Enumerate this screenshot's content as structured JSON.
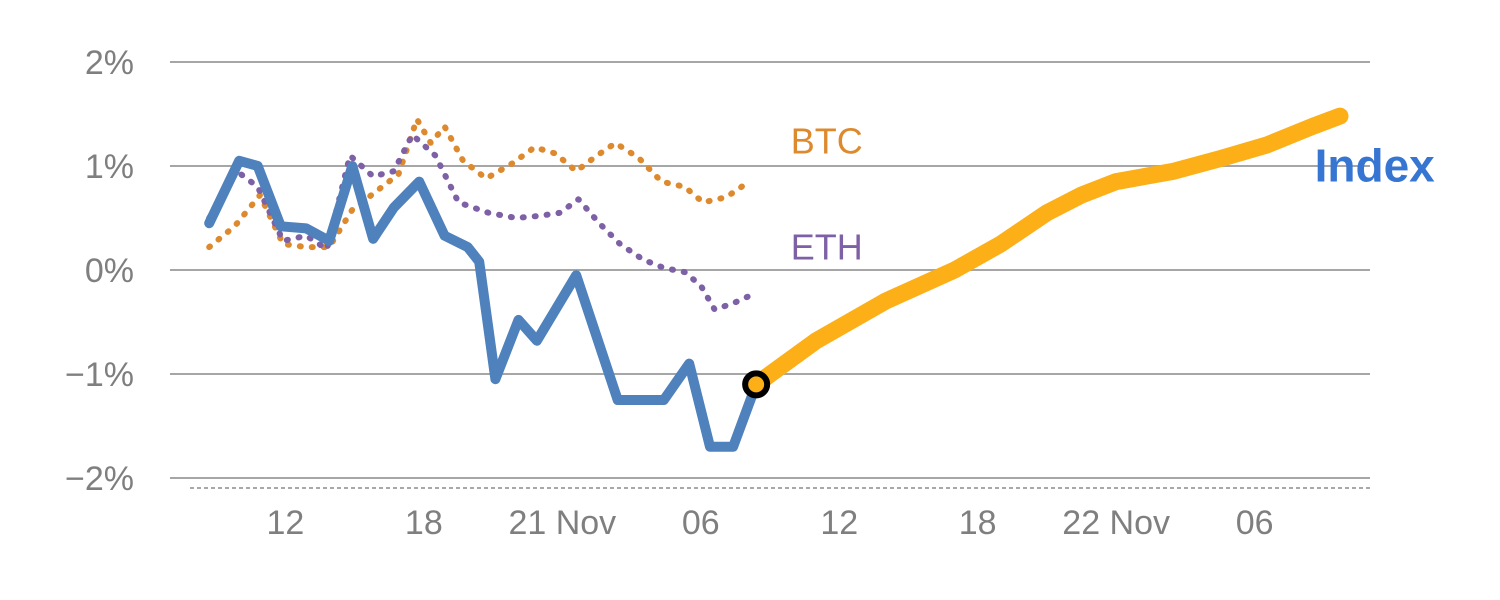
{
  "chart_data": {
    "type": "line",
    "title": "",
    "xlabel": "",
    "ylabel": "",
    "x_unit": "hours relative to first x tick (times of day across 20–23 Nov)",
    "xlim": [
      -5,
      47
    ],
    "ylim": [
      -2,
      2
    ],
    "grid": "horizontal",
    "legend_position": "inline-labels",
    "colors": {
      "index_line": "#4f81bd",
      "index_label": "#3676d2",
      "btc": "#dd8a2f",
      "eth": "#7d60a5",
      "forecast": "#fcaf17",
      "marker_ring": "#000000",
      "grid": "#a6a6a6",
      "axis_text": "#7f7f7f",
      "axis_line": "#8c8c8c"
    },
    "yticks": [
      {
        "value": 2,
        "label": "2%"
      },
      {
        "value": 1,
        "label": "1%"
      },
      {
        "value": 0,
        "label": "0%"
      },
      {
        "value": -1,
        "label": "−1%"
      },
      {
        "value": -2,
        "label": "−2%"
      }
    ],
    "xticks": [
      {
        "value": 0,
        "label": "12"
      },
      {
        "value": 6,
        "label": "18"
      },
      {
        "value": 12,
        "label": "21 Nov"
      },
      {
        "value": 18,
        "label": "06"
      },
      {
        "value": 24,
        "label": "12"
      },
      {
        "value": 30,
        "label": "18"
      },
      {
        "value": 36,
        "label": "22 Nov"
      },
      {
        "value": 42,
        "label": "06"
      }
    ],
    "series": [
      {
        "name": "BTC",
        "style": "dotted",
        "width": 6,
        "color": "#dd8a2f",
        "points": [
          [
            -3.3,
            0.22
          ],
          [
            -2.2,
            0.42
          ],
          [
            -1.1,
            0.72
          ],
          [
            -0.1,
            0.25
          ],
          [
            0.9,
            0.22
          ],
          [
            1.9,
            0.22
          ],
          [
            2.9,
            0.58
          ],
          [
            3.9,
            0.75
          ],
          [
            4.9,
            0.92
          ],
          [
            5.7,
            1.45
          ],
          [
            6.3,
            1.22
          ],
          [
            6.9,
            1.38
          ],
          [
            7.7,
            1.05
          ],
          [
            8.7,
            0.88
          ],
          [
            9.8,
            1.02
          ],
          [
            10.8,
            1.18
          ],
          [
            11.7,
            1.12
          ],
          [
            12.6,
            0.95
          ],
          [
            13.5,
            1.1
          ],
          [
            14.3,
            1.22
          ],
          [
            15.3,
            1.08
          ],
          [
            16.3,
            0.85
          ],
          [
            17.3,
            0.8
          ],
          [
            18.1,
            0.65
          ],
          [
            19.1,
            0.7
          ],
          [
            20.1,
            0.85
          ]
        ],
        "label": {
          "text": "BTC",
          "x": 21.9,
          "y": 1.12,
          "size": 36,
          "bold": false
        }
      },
      {
        "name": "ETH",
        "style": "dotted",
        "width": 6,
        "color": "#7d60a5",
        "points": [
          [
            -3.3,
            0.5
          ],
          [
            -2.1,
            0.95
          ],
          [
            -1.2,
            0.8
          ],
          [
            -0.1,
            0.28
          ],
          [
            0.9,
            0.33
          ],
          [
            1.8,
            0.2
          ],
          [
            2.8,
            1.1
          ],
          [
            3.8,
            0.9
          ],
          [
            4.7,
            0.95
          ],
          [
            5.5,
            1.3
          ],
          [
            6.5,
            1.1
          ],
          [
            7.5,
            0.65
          ],
          [
            8.8,
            0.55
          ],
          [
            10.0,
            0.5
          ],
          [
            11.0,
            0.52
          ],
          [
            11.9,
            0.55
          ],
          [
            12.7,
            0.68
          ],
          [
            13.6,
            0.45
          ],
          [
            14.5,
            0.25
          ],
          [
            15.5,
            0.1
          ],
          [
            16.4,
            0.02
          ],
          [
            17.3,
            -0.02
          ],
          [
            18.0,
            -0.15
          ],
          [
            18.6,
            -0.38
          ],
          [
            19.4,
            -0.32
          ],
          [
            20.1,
            -0.25
          ]
        ],
        "label": {
          "text": "ETH",
          "x": 21.9,
          "y": 0.1,
          "size": 36,
          "bold": false
        }
      },
      {
        "name": "Index",
        "style": "solid",
        "width": 10,
        "color": "#4f81bd",
        "points": [
          [
            -3.3,
            0.45
          ],
          [
            -2.0,
            1.05
          ],
          [
            -1.2,
            1.0
          ],
          [
            -0.2,
            0.42
          ],
          [
            0.9,
            0.4
          ],
          [
            1.9,
            0.28
          ],
          [
            2.9,
            1.0
          ],
          [
            3.8,
            0.3
          ],
          [
            4.7,
            0.6
          ],
          [
            5.8,
            0.85
          ],
          [
            6.9,
            0.33
          ],
          [
            7.9,
            0.22
          ],
          [
            8.4,
            0.08
          ],
          [
            9.1,
            -1.05
          ],
          [
            10.1,
            -0.48
          ],
          [
            10.9,
            -0.68
          ],
          [
            12.6,
            -0.05
          ],
          [
            14.4,
            -1.25
          ],
          [
            16.4,
            -1.25
          ],
          [
            17.5,
            -0.9
          ],
          [
            18.4,
            -1.7
          ],
          [
            19.4,
            -1.7
          ],
          [
            20.4,
            -1.1
          ]
        ],
        "label": {
          "text": "Index",
          "x": 44.6,
          "y": 0.85,
          "size": 46,
          "bold": true,
          "color": "#3676d2"
        }
      },
      {
        "name": "Index forecast",
        "style": "solid",
        "width": 17,
        "color": "#fcaf17",
        "points": [
          [
            20.4,
            -1.1
          ],
          [
            23.0,
            -0.68
          ],
          [
            26.0,
            -0.3
          ],
          [
            29.0,
            0.0
          ],
          [
            31.0,
            0.25
          ],
          [
            33.0,
            0.55
          ],
          [
            34.5,
            0.72
          ],
          [
            36.0,
            0.85
          ],
          [
            38.5,
            0.95
          ],
          [
            40.5,
            1.07
          ],
          [
            42.5,
            1.2
          ],
          [
            44.5,
            1.38
          ],
          [
            45.7,
            1.48
          ]
        ]
      }
    ],
    "marker": {
      "series": "Index forecast start",
      "x": 20.4,
      "y": -1.1,
      "radius": 11,
      "fill": "#fcaf17",
      "ring_color": "#000000",
      "ring_width": 6
    }
  }
}
